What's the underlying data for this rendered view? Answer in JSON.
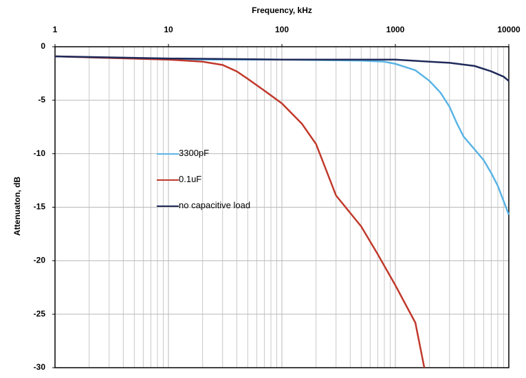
{
  "chart_data": {
    "type": "line",
    "title": "Frequency, kHz",
    "y_label": "Attenuaton, dB",
    "xlim": [
      1,
      10000
    ],
    "xticks": [
      1,
      10,
      100,
      1000,
      10000
    ],
    "log_x": true,
    "ylim": [
      -30,
      0
    ],
    "yticks": [
      0,
      -5,
      -10,
      -15,
      -20,
      -25,
      -30
    ],
    "grid": true,
    "minor_grid": true,
    "x_axis_position": "top",
    "legend": "center-left",
    "series": [
      {
        "name": "3300pF",
        "color": "#5ab4e5",
        "x": [
          1,
          2,
          5,
          10,
          100,
          500,
          800,
          1000,
          1500,
          2000,
          2500,
          3000,
          3500,
          4000,
          5000,
          6000,
          7000,
          8000,
          10000
        ],
        "values": [
          -0.9,
          -1.0,
          -1.1,
          -1.2,
          -1.2,
          -1.3,
          -1.4,
          -1.6,
          -2.2,
          -3.2,
          -4.3,
          -5.6,
          -7.2,
          -8.4,
          -9.6,
          -10.6,
          -11.8,
          -13.0,
          -15.7
        ]
      },
      {
        "name": "0.1uF",
        "color": "#c0392b",
        "x": [
          1,
          10,
          20,
          30,
          40,
          50,
          70,
          100,
          150,
          200,
          300,
          500,
          700,
          1000,
          1500,
          1800
        ],
        "values": [
          -0.9,
          -1.2,
          -1.4,
          -1.7,
          -2.3,
          -3.0,
          -4.1,
          -5.3,
          -7.2,
          -9.1,
          -13.9,
          -16.8,
          -19.4,
          -22.3,
          -25.8,
          -30
        ]
      },
      {
        "name": "no capacitive load",
        "color": "#1f2a5a",
        "x": [
          1,
          10,
          100,
          1000,
          2000,
          3000,
          5000,
          7000,
          9000,
          10000
        ],
        "values": [
          -0.9,
          -1.1,
          -1.2,
          -1.2,
          -1.4,
          -1.5,
          -1.8,
          -2.3,
          -2.8,
          -3.2
        ]
      }
    ]
  }
}
